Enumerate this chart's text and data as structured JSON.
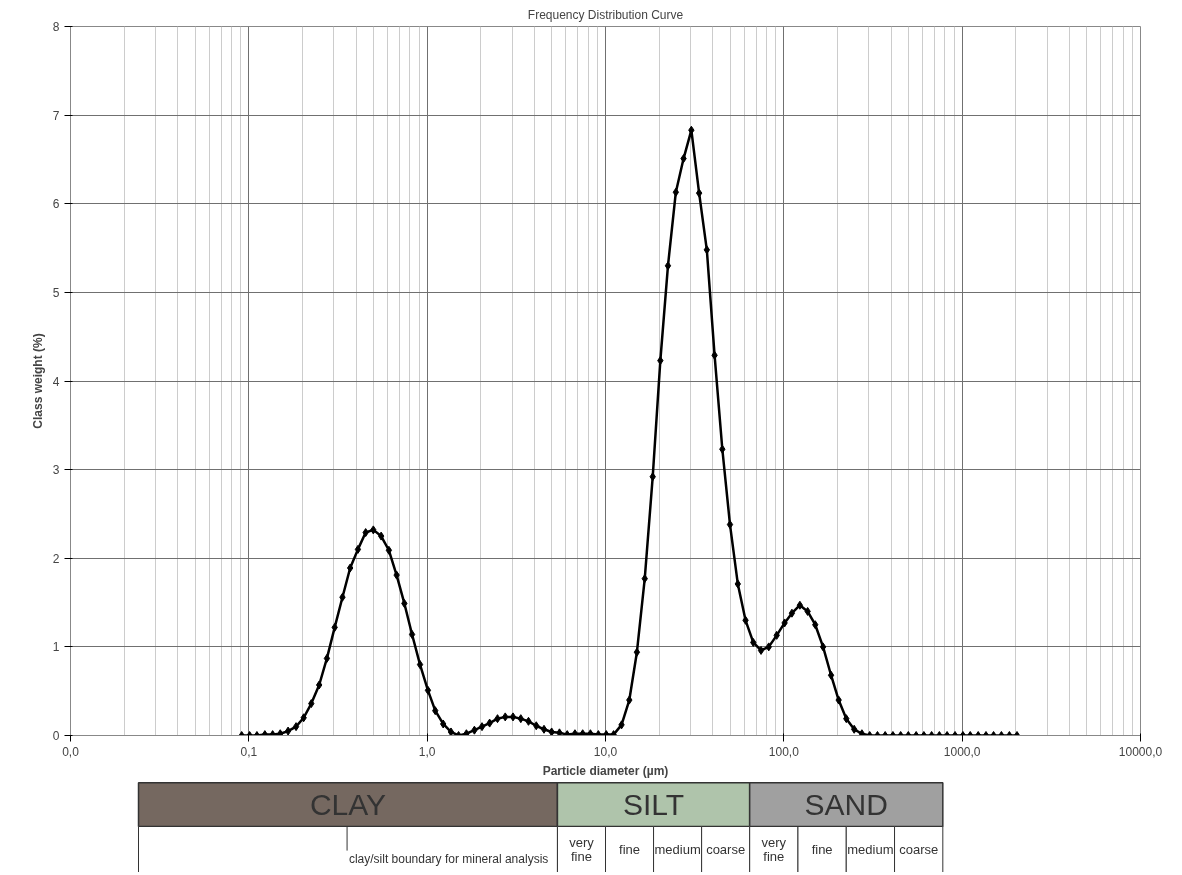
{
  "chart_data": {
    "type": "line",
    "title": "Frequency Distribution Curve",
    "xlabel": "Particle diameter (µm)",
    "ylabel": "Class weight (%)",
    "log": "x",
    "grid": true,
    "marker": "diamond",
    "line_style": "solid",
    "xlim": [
      0.01,
      10000
    ],
    "ylim": [
      0,
      8
    ],
    "xticks": [
      {
        "value": 0.01,
        "label": "0,0"
      },
      {
        "value": 0.1,
        "label": "0,1"
      },
      {
        "value": 1,
        "label": "1,0"
      },
      {
        "value": 10,
        "label": "10,0"
      },
      {
        "value": 100,
        "label": "100,0"
      },
      {
        "value": 1000,
        "label": "1000,0"
      },
      {
        "value": 10000,
        "label": "10000,0"
      }
    ],
    "yticks": [
      0,
      1,
      2,
      3,
      4,
      5,
      6,
      7,
      8
    ],
    "x": [
      0.0912,
      0.101,
      0.111,
      0.123,
      0.136,
      0.15,
      0.166,
      0.184,
      0.203,
      0.224,
      0.248,
      0.274,
      0.303,
      0.335,
      0.37,
      0.409,
      0.452,
      0.499,
      0.552,
      0.61,
      0.674,
      0.745,
      0.823,
      0.912,
      1.01,
      1.11,
      1.23,
      1.36,
      1.5,
      1.66,
      1.84,
      2.03,
      2.24,
      2.48,
      2.74,
      3.03,
      3.35,
      3.7,
      4.09,
      4.52,
      4.99,
      5.52,
      6.1,
      6.74,
      7.45,
      8.23,
      9.12,
      10.1,
      11.1,
      12.3,
      13.6,
      15.0,
      16.6,
      18.4,
      20.3,
      22.4,
      24.8,
      27.4,
      30.3,
      33.5,
      37.0,
      40.9,
      45.2,
      49.9,
      55.2,
      61.0,
      67.4,
      74.5,
      82.3,
      91.2,
      101,
      111,
      123,
      136,
      150,
      166,
      184,
      203,
      224,
      248,
      274,
      303,
      335,
      370,
      409,
      452,
      499,
      552,
      610,
      674,
      745,
      823,
      912,
      1010,
      1110,
      1230,
      1360,
      1500,
      1660,
      1840,
      2030
    ],
    "series": [
      {
        "color": "#000000",
        "values": [
          0.0,
          0.0,
          0.0,
          0.01,
          0.01,
          0.02,
          0.05,
          0.1,
          0.2,
          0.36,
          0.57,
          0.87,
          1.22,
          1.56,
          1.89,
          2.1,
          2.29,
          2.32,
          2.25,
          2.09,
          1.81,
          1.49,
          1.14,
          0.8,
          0.51,
          0.28,
          0.13,
          0.04,
          0.0,
          0.02,
          0.06,
          0.1,
          0.14,
          0.19,
          0.21,
          0.21,
          0.19,
          0.16,
          0.11,
          0.07,
          0.04,
          0.03,
          0.01,
          0.02,
          0.02,
          0.02,
          0.01,
          0.01,
          0.01,
          0.12,
          0.4,
          0.94,
          1.77,
          2.92,
          4.23,
          5.3,
          6.13,
          6.51,
          6.83,
          6.12,
          5.48,
          4.29,
          3.23,
          2.38,
          1.71,
          1.3,
          1.05,
          0.96,
          1.0,
          1.13,
          1.27,
          1.38,
          1.47,
          1.4,
          1.25,
          1.0,
          0.68,
          0.4,
          0.19,
          0.07,
          0.02,
          0.0,
          0.0,
          0.0,
          0.0,
          0.0,
          0.0,
          0.0,
          0.0,
          0.0,
          0.0,
          0.0,
          0.0,
          0.0,
          0.0,
          0.0,
          0.0,
          0.0,
          0.0,
          0.0,
          0.0
        ]
      }
    ],
    "annotations": [
      "CLAY",
      "SILT",
      "SAND",
      "clay/silt boundary for mineral analysis",
      "very fine",
      "fine",
      "medium",
      "coarse",
      "very fine",
      "fine",
      "medium",
      "coarse"
    ]
  }
}
